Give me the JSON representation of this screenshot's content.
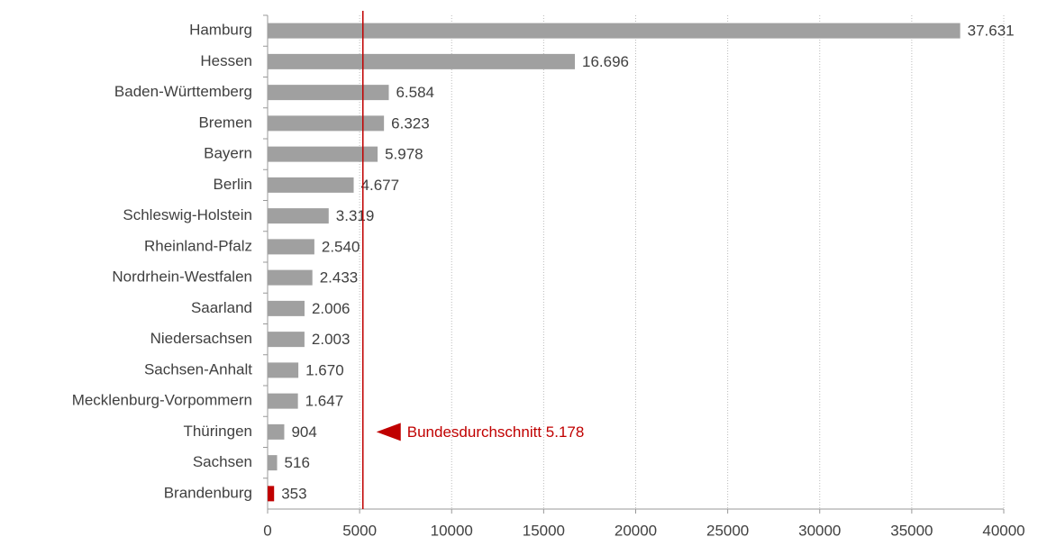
{
  "chart_data": {
    "type": "hbar",
    "categories": [
      "Hamburg",
      "Hessen",
      "Baden-Württemberg",
      "Bremen",
      "Bayern",
      "Berlin",
      "Schleswig-Holstein",
      "Rheinland-Pfalz",
      "Nordrhein-Westfalen",
      "Saarland",
      "Niedersachsen",
      "Sachsen-Anhalt",
      "Mecklenburg-Vorpommern",
      "Thüringen",
      "Sachsen",
      "Brandenburg"
    ],
    "values": [
      37631,
      16696,
      6584,
      6323,
      5978,
      4677,
      3319,
      2540,
      2433,
      2006,
      2003,
      1670,
      1647,
      904,
      516,
      353
    ],
    "value_labels": [
      "37.631",
      "16.696",
      "6.584",
      "6.323",
      "5.978",
      "4.677",
      "3.319",
      "2.540",
      "2.433",
      "2.006",
      "2.003",
      "1.670",
      "1.647",
      "904",
      "516",
      "353"
    ],
    "colors": [
      "#a0a0a0",
      "#a0a0a0",
      "#a0a0a0",
      "#a0a0a0",
      "#a0a0a0",
      "#a0a0a0",
      "#a0a0a0",
      "#a0a0a0",
      "#a0a0a0",
      "#a0a0a0",
      "#a0a0a0",
      "#a0a0a0",
      "#a0a0a0",
      "#a0a0a0",
      "#a0a0a0",
      "#c00000"
    ],
    "xlim": [
      0,
      40000
    ],
    "xticks": [
      0,
      5000,
      10000,
      15000,
      20000,
      25000,
      30000,
      35000,
      40000
    ],
    "grid": true,
    "reference_line": {
      "value": 5178,
      "label": "Bundesdurchschnitt 5.178",
      "color": "#c00000"
    }
  }
}
